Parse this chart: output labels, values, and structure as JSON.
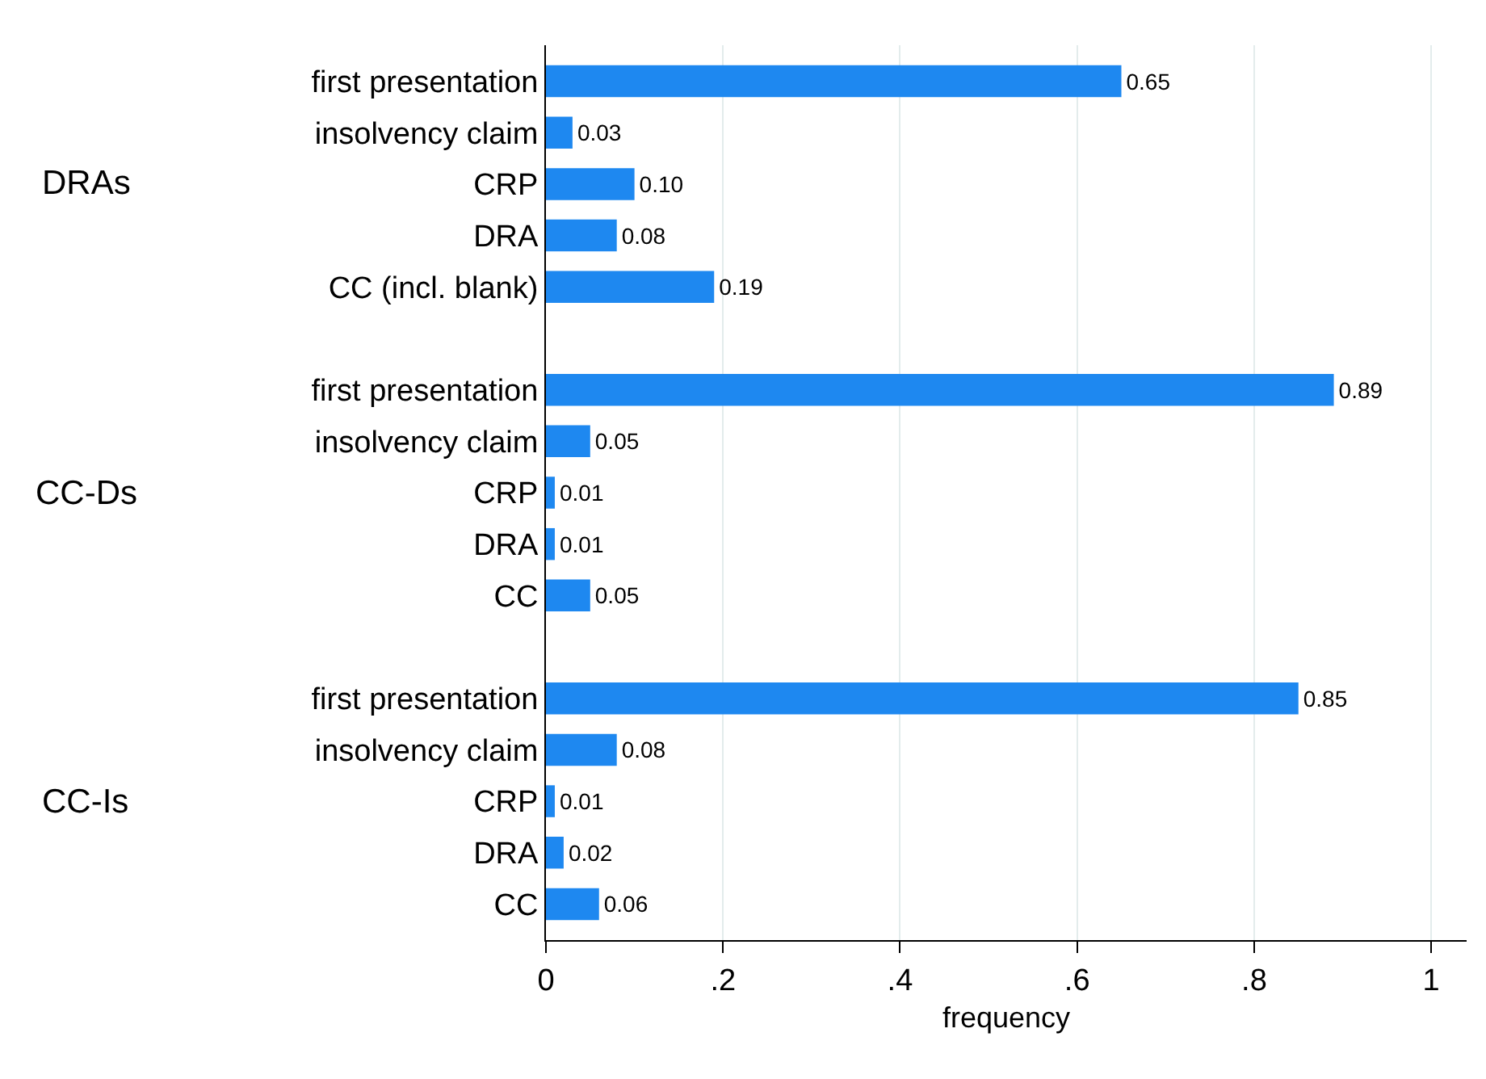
{
  "chart_data": {
    "type": "bar",
    "orientation": "horizontal",
    "xlabel": "frequency",
    "categories": [
      "first presentation",
      "insolvency claim",
      "CRP",
      "DRA",
      "CC (incl. blank)",
      null,
      "first presentation",
      "insolvency claim",
      "CRP",
      "DRA",
      "CC",
      null,
      "first presentation",
      "insolvency claim",
      "CRP",
      "DRA",
      "CC"
    ],
    "values": [
      0.65,
      0.03,
      0.1,
      0.08,
      0.19,
      null,
      0.89,
      0.05,
      0.01,
      0.01,
      0.05,
      null,
      0.85,
      0.08,
      0.01,
      0.02,
      0.06
    ],
    "value_labels": [
      "0.65",
      "0.03",
      "0.10",
      "0.08",
      "0.19",
      null,
      "0.89",
      "0.05",
      "0.01",
      "0.01",
      "0.05",
      null,
      "0.85",
      "0.08",
      "0.01",
      "0.02",
      "0.06"
    ],
    "color": "#1e88f0",
    "annotations": [
      "DRAs",
      "CC-Ds",
      "CC-Is"
    ],
    "xlim": [
      0,
      1.04
    ],
    "xticks": [
      0,
      {
        "value": 0.2,
        "label": ".2"
      },
      {
        "value": 0.4,
        "label": ".4"
      },
      {
        "value": 0.6,
        "label": ".6"
      },
      {
        "value": 0.8,
        "label": ".8"
      },
      1
    ],
    "grid": "x"
  }
}
